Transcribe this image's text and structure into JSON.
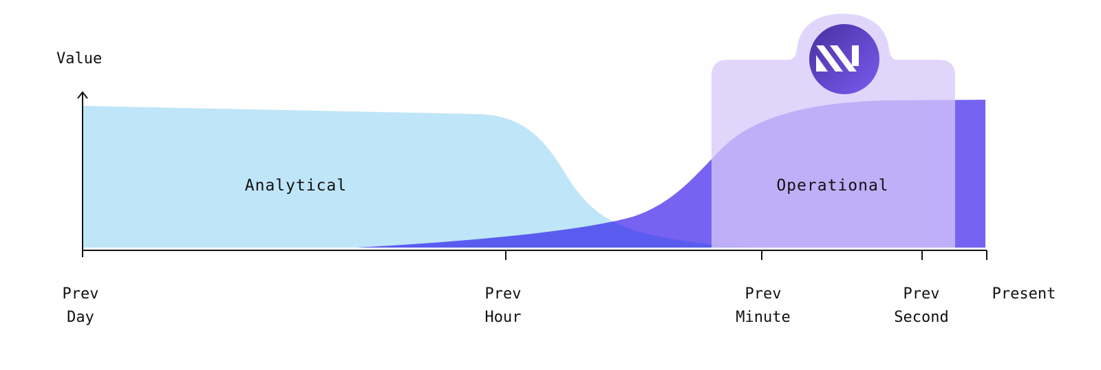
{
  "axis": {
    "y_label": "Value"
  },
  "ticks": [
    {
      "line1": "Prev",
      "line2": "Day"
    },
    {
      "line1": "Prev",
      "line2": "Hour"
    },
    {
      "line1": "Prev",
      "line2": "Minute"
    },
    {
      "line1": "Prev",
      "line2": "Second"
    },
    {
      "line1": "Present",
      "line2": ""
    }
  ],
  "regions": {
    "analytical_label": "Analytical",
    "operational_label": "Operational"
  },
  "colors": {
    "analytical": "#bfe5f8",
    "operational": "#7763f1",
    "overlap": "#5a5cf0",
    "panel": "#ddd2fb",
    "logo_start": "#4a2fa0",
    "logo_end": "#7a5cf0"
  },
  "logo": {
    "icon": "materialize-logo-icon"
  }
}
